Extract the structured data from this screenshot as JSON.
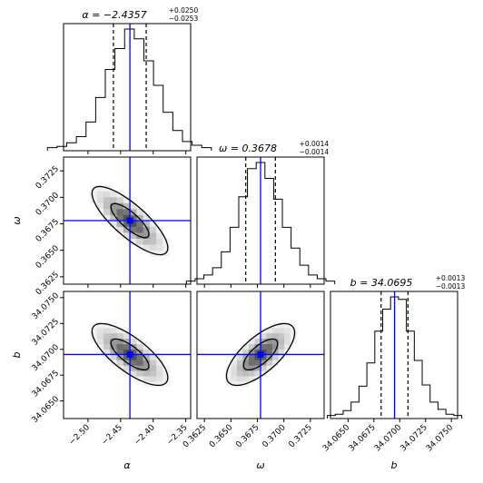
{
  "chart_data": {
    "type": "corner",
    "parameters": [
      {
        "name": "α",
        "xlabel": "α",
        "ylabel": "",
        "median": -2.4357,
        "lower_err": 0.0253,
        "upper_err": 0.025,
        "title": {
          "prefix": "α = ",
          "value": "−2.4357",
          "sup": "+0.0250",
          "sub": "−0.0253"
        },
        "range": [
          -2.5375,
          -2.3425
        ],
        "ticks": [
          -2.5,
          -2.45,
          -2.4,
          -2.35
        ],
        "tick_labels": [
          "−2.50",
          "−2.45",
          "−2.40",
          "−2.35"
        ]
      },
      {
        "name": "ω",
        "xlabel": "ω",
        "ylabel": "ω",
        "median": 0.3678,
        "lower_err": 0.0014,
        "upper_err": 0.0014,
        "title": {
          "prefix": "ω = ",
          "value": "0.3678",
          "sup": "+0.0014",
          "sub": "−0.0014"
        },
        "range": [
          0.3618,
          0.3738
        ],
        "ticks": [
          0.3625,
          0.365,
          0.3675,
          0.37,
          0.3725
        ],
        "tick_labels": [
          "0.3625",
          "0.3650",
          "0.3675",
          "0.3700",
          "0.3725"
        ]
      },
      {
        "name": "b",
        "xlabel": "b",
        "ylabel": "b",
        "median": 34.0695,
        "lower_err": 0.0013,
        "upper_err": 0.0013,
        "title": {
          "prefix": "b = ",
          "value": "34.0695",
          "sup": "+0.0013",
          "sub": "−0.0013"
        },
        "range": [
          34.0633,
          34.0756
        ],
        "ticks": [
          34.065,
          34.0675,
          34.07,
          34.0725,
          34.075
        ],
        "tick_labels": [
          "34.0650",
          "34.0675",
          "34.0700",
          "34.0725",
          "34.0750"
        ]
      }
    ],
    "histograms": [
      [
        1,
        2,
        5,
        10,
        22,
        42,
        65,
        82,
        98,
        90,
        72,
        52,
        30,
        15,
        6,
        3,
        1
      ],
      [
        1,
        3,
        6,
        12,
        25,
        45,
        70,
        93,
        98,
        85,
        68,
        45,
        28,
        14,
        6,
        3,
        1
      ],
      [
        1,
        2,
        5,
        12,
        25,
        44,
        70,
        88,
        98,
        96,
        70,
        46,
        26,
        12,
        6,
        2,
        1
      ]
    ],
    "correlations": {
      "1-0": -0.8,
      "2-0": -0.75,
      "2-1": 0.7
    },
    "truth_line_color": "#0000ff",
    "quantile_line_style": "dashed",
    "contour_color": "#000000",
    "grid": false
  }
}
